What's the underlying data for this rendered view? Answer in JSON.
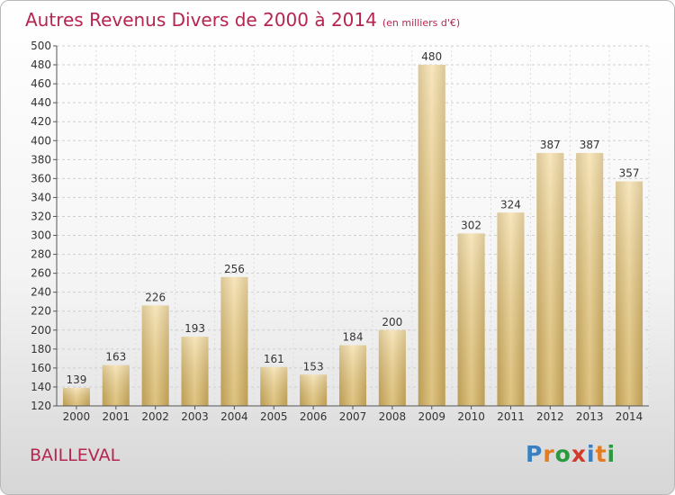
{
  "title": "Autres Revenus Divers de 2000 à 2014",
  "unit": "(en milliers d'€)",
  "commune": "BAILLEVAL",
  "logo": {
    "text": "Proxiti",
    "colors": [
      "#3a7fc1",
      "#e37b1f",
      "#2b9a3f",
      "#d23a2a",
      "#3a7fc1",
      "#e37b1f",
      "#2b9a3f"
    ]
  },
  "chart_data": {
    "type": "bar",
    "categories": [
      "2000",
      "2001",
      "2002",
      "2003",
      "2004",
      "2005",
      "2006",
      "2007",
      "2008",
      "2009",
      "2010",
      "2011",
      "2012",
      "2013",
      "2014"
    ],
    "values": [
      139,
      163,
      226,
      193,
      256,
      161,
      153,
      184,
      200,
      480,
      302,
      324,
      387,
      387,
      357
    ],
    "ylim": [
      120,
      500
    ],
    "yticks": [
      120,
      140,
      160,
      180,
      200,
      220,
      240,
      260,
      280,
      300,
      320,
      340,
      360,
      380,
      400,
      420,
      440,
      460,
      480,
      500
    ],
    "grid": true,
    "bar_color": "#e8c87a"
  }
}
